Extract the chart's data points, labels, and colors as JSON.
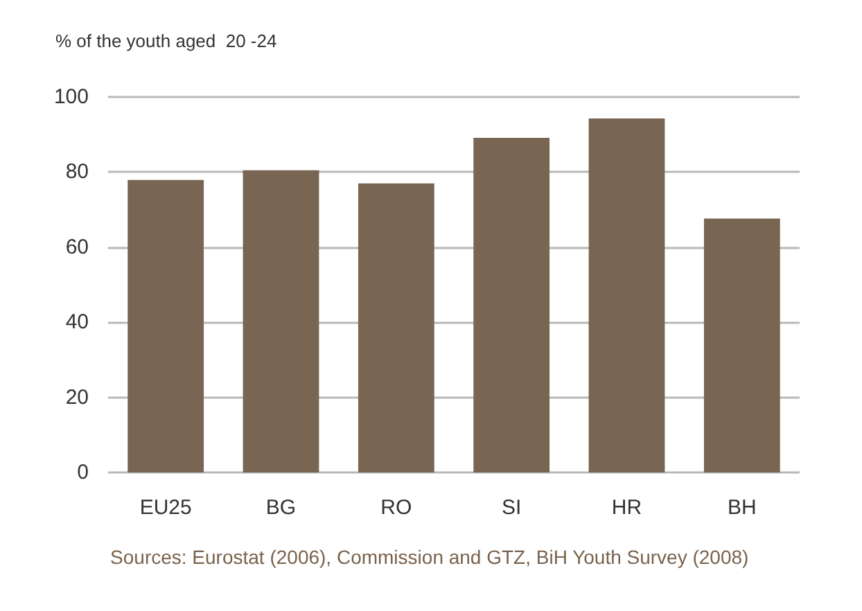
{
  "chart_data": {
    "type": "bar",
    "ylabel": "% of the youth aged  20 -24",
    "categories": [
      "EU25",
      "BG",
      "RO",
      "SI",
      "HR",
      "BH"
    ],
    "values": [
      77.9,
      80.5,
      77.0,
      89.1,
      94.3,
      67.6
    ],
    "color": "#786552",
    "ylim": [
      0,
      100
    ],
    "yticks": [
      0,
      20,
      40,
      60,
      80,
      100
    ],
    "grid": "y",
    "annotations": [
      "Sources: Eurostat (2006), Commission and GTZ, BiH Youth Survey (2008)"
    ]
  }
}
